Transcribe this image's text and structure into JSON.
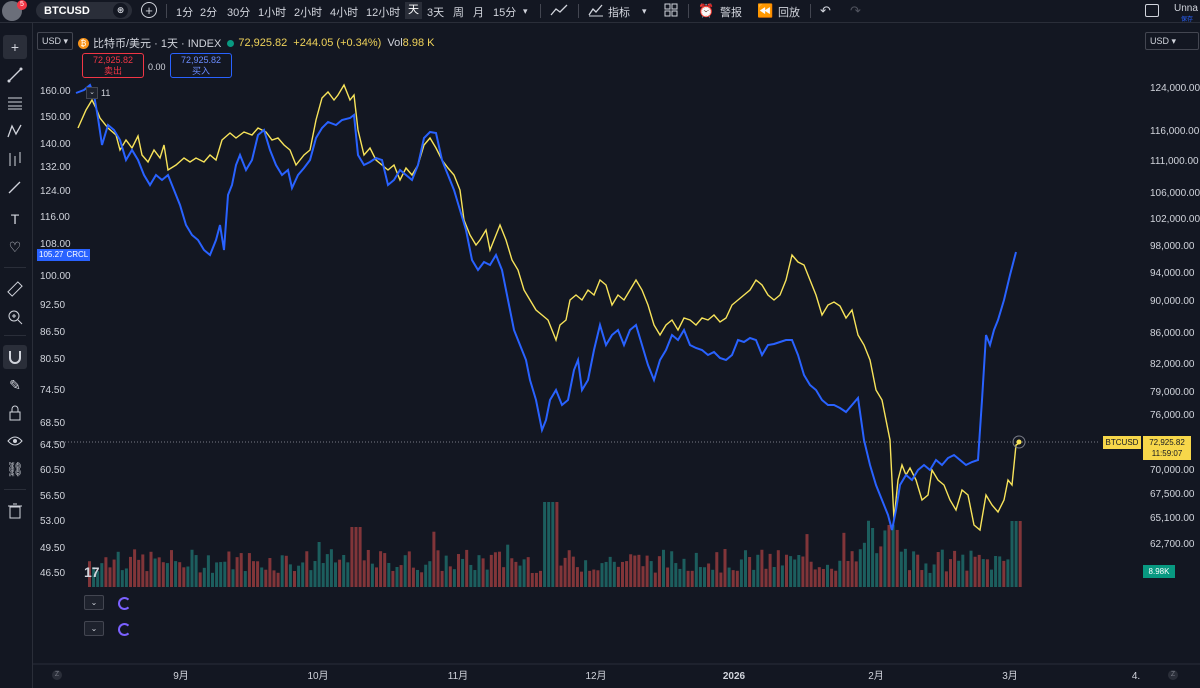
{
  "toolbar": {
    "avatar_badge": "5",
    "symbol": "BTCUSD",
    "timeframes": [
      "1分",
      "2分",
      "30分",
      "1小时",
      "2小时",
      "4小时",
      "12小时",
      "天",
      "3天",
      "周",
      "月",
      "15分"
    ],
    "active_timeframe": "天",
    "indicators_label": "指标",
    "alert_label": "警报",
    "replay_label": "回放",
    "account_label": "Unna",
    "account_sub": "保存"
  },
  "legend": {
    "title": "比特币/美元 · 1天 · INDEX",
    "price": "72,925.82",
    "change": "+244.05 (+0.34%)",
    "vol_label": "Vol",
    "vol_value": "8.98 K",
    "sell_price": "72,925.82",
    "sell_label": "卖出",
    "spread": "0.00",
    "buy_price": "72,925.82",
    "buy_label": "买入",
    "currency_left": "USD",
    "currency_right": "USD"
  },
  "marker": "11",
  "tv_logo": "17",
  "badges": {
    "crcl_price": "105.27",
    "crcl_label": "CRCL",
    "btc_label": "BTCUSD",
    "btc_price": "72,925.82",
    "btc_countdown": "11:59:07",
    "vol": "8.98K"
  },
  "zoom_left": "Z",
  "zoom_right": "Z",
  "chart_data": {
    "type": "line",
    "left_axis_ticks": [
      "160.00",
      "150.00",
      "140.00",
      "132.00",
      "124.00",
      "116.00",
      "108.00",
      "100.00",
      "92.50",
      "86.50",
      "80.50",
      "74.50",
      "68.50",
      "64.50",
      "60.50",
      "56.50",
      "53.00",
      "49.50",
      "46.50"
    ],
    "right_axis_ticks": [
      "124,000.00",
      "116,000.00",
      "111,000.00",
      "106,000.00",
      "102,000.00",
      "98,000.00",
      "94,000.00",
      "90,000.00",
      "86,000.00",
      "82,000.00",
      "79,000.00",
      "76,000.00",
      "70,000.00",
      "67,500.00",
      "65,100.00",
      "62,700.00"
    ],
    "x_ticks": [
      "9月",
      "10月",
      "11月",
      "12月",
      "2026",
      "2月",
      "3月",
      "4."
    ],
    "series": [
      {
        "name": "CRCL",
        "color": "#2962ff"
      },
      {
        "name": "BTCUSD",
        "color": "#f7e35a"
      }
    ],
    "current_price_line": "72,925.82"
  }
}
